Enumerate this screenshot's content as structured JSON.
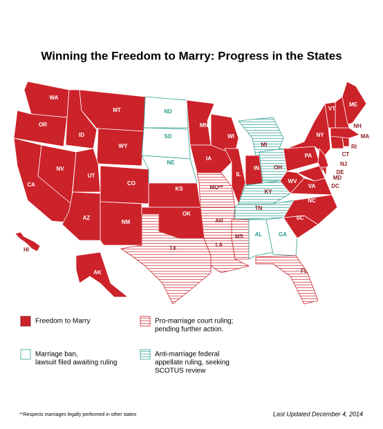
{
  "header": {
    "title": "Winning the Freedom to Marry: Progress in the States"
  },
  "legend": [
    {
      "lines": [
        "Freedom to Marry"
      ],
      "fill": "#cc2229",
      "pattern": "solid",
      "stroke": "#7a1015",
      "text_color": "#ffffff"
    },
    {
      "lines": [
        "Pro-marriage court ruling;",
        "pending further action."
      ],
      "fill": "#cc2229",
      "pattern": "lines",
      "stroke": "#cc2229",
      "text_color": "#8b1a1f"
    },
    {
      "lines": [
        "Marriage ban,",
        "lawsuit filed awaiting ruling"
      ],
      "fill": "#2a9d8f",
      "pattern": "none",
      "stroke": "#2a9d8f",
      "text_color": "#2a9d8f"
    },
    {
      "lines": [
        "Anti-marriage federal",
        "appellate ruling, seeking",
        "SCOTUS review"
      ],
      "fill": "#2a9d8f",
      "pattern": "lines",
      "stroke": "#2a9d8f",
      "text_color": "#8b1a1f"
    }
  ],
  "states": [
    {
      "label": "WA",
      "status": 0
    },
    {
      "label": "OR",
      "status": 0
    },
    {
      "label": "CA",
      "status": 0
    },
    {
      "label": "NV",
      "status": 0
    },
    {
      "label": "ID",
      "status": 0
    },
    {
      "label": "MT",
      "status": 0
    },
    {
      "label": "WY",
      "status": 0
    },
    {
      "label": "UT",
      "status": 0
    },
    {
      "label": "CO",
      "status": 0
    },
    {
      "label": "AZ",
      "status": 0
    },
    {
      "label": "NM",
      "status": 0
    },
    {
      "label": "ND",
      "status": 2
    },
    {
      "label": "SD",
      "status": 2
    },
    {
      "label": "NE",
      "status": 2
    },
    {
      "label": "KS",
      "status": 0
    },
    {
      "label": "OK",
      "status": 0
    },
    {
      "label": "TX",
      "status": 1
    },
    {
      "label": "MN",
      "status": 0
    },
    {
      "label": "IA",
      "status": 0
    },
    {
      "label": "MO**",
      "status": 1
    },
    {
      "label": "AR",
      "status": 1
    },
    {
      "label": "LA",
      "status": 1
    },
    {
      "label": "WI",
      "status": 0
    },
    {
      "label": "IL",
      "status": 0
    },
    {
      "label": "MI",
      "status": 3
    },
    {
      "label": "IN",
      "status": 0
    },
    {
      "label": "OH",
      "status": 3
    },
    {
      "label": "KY",
      "status": 3
    },
    {
      "label": "TN",
      "status": 3
    },
    {
      "label": "MS",
      "status": 1
    },
    {
      "label": "AL",
      "status": 2
    },
    {
      "label": "GA",
      "status": 2
    },
    {
      "label": "FL",
      "status": 1
    },
    {
      "label": "SC",
      "status": 0
    },
    {
      "label": "NC",
      "status": 0
    },
    {
      "label": "VA",
      "status": 0
    },
    {
      "label": "WV",
      "status": 0
    },
    {
      "label": "PA",
      "status": 0
    },
    {
      "label": "NY",
      "status": 0
    },
    {
      "label": "NJ",
      "status": 0
    },
    {
      "label": "DE",
      "status": 0
    },
    {
      "label": "MD",
      "status": 0
    },
    {
      "label": "DC",
      "status": 0
    },
    {
      "label": "CT",
      "status": 0
    },
    {
      "label": "RI",
      "status": 0
    },
    {
      "label": "MA",
      "status": 0
    },
    {
      "label": "NH",
      "status": 0
    },
    {
      "label": "VT",
      "status": 0
    },
    {
      "label": "ME",
      "status": 0
    },
    {
      "label": "AK",
      "status": 0
    },
    {
      "label": "HI",
      "status": 0
    }
  ],
  "footer": {
    "note": "**Respects marriages legally performed in other states",
    "updated": "Last Updated December 4, 2014"
  }
}
